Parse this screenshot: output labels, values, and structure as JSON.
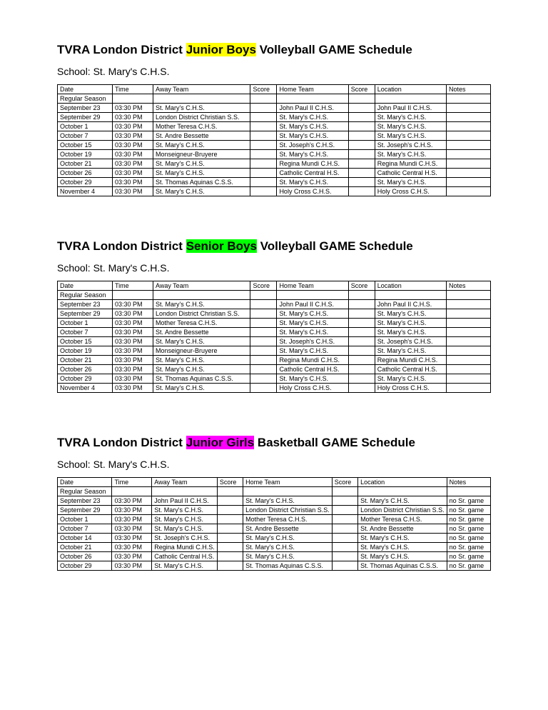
{
  "sections": [
    {
      "title_pre": "TVRA London District ",
      "title_hl": "Junior Boys",
      "title_post": " Volleyball GAME Schedule",
      "hl_class": "hl-yellow",
      "subtitle": "School: St. Mary's C.H.S.",
      "columns": [
        "Date",
        "Time",
        "Away Team",
        "Score",
        "Home Team",
        "Score",
        "Location",
        "Notes"
      ],
      "subheader": "Regular Season",
      "rows": [
        [
          "September 23",
          "03:30 PM",
          "St. Mary's C.H.S.",
          "",
          "John Paul II C.H.S.",
          "",
          "John Paul II C.H.S.",
          ""
        ],
        [
          "September 29",
          "03:30 PM",
          "London District Christian S.S.",
          "",
          "St. Mary's C.H.S.",
          "",
          "St. Mary's C.H.S.",
          ""
        ],
        [
          "October 1",
          "03:30 PM",
          "Mother Teresa C.H.S.",
          "",
          "St. Mary's C.H.S.",
          "",
          "St. Mary's C.H.S.",
          ""
        ],
        [
          "October 7",
          "03:30 PM",
          "St. Andre Bessette",
          "",
          "St. Mary's C.H.S.",
          "",
          "St. Mary's C.H.S.",
          ""
        ],
        [
          "October 15",
          "03:30 PM",
          "St. Mary's C.H.S.",
          "",
          "St. Joseph's C.H.S.",
          "",
          "St. Joseph's C.H.S.",
          ""
        ],
        [
          "October 19",
          "03:30 PM",
          "Monseigneur-Bruyere",
          "",
          "St. Mary's C.H.S.",
          "",
          "St. Mary's C.H.S.",
          ""
        ],
        [
          "October 21",
          "03:30 PM",
          "St. Mary's C.H.S.",
          "",
          "Regina Mundi C.H.S.",
          "",
          "Regina Mundi C.H.S.",
          ""
        ],
        [
          "October 26",
          "03:30 PM",
          "St. Mary's C.H.S.",
          "",
          "Catholic Central H.S.",
          "",
          "Catholic Central H.S.",
          ""
        ],
        [
          "October 29",
          "03:30 PM",
          "St. Thomas Aquinas C.S.S.",
          "",
          "St. Mary's C.H.S.",
          "",
          "St. Mary's C.H.S.",
          ""
        ],
        [
          "November 4",
          "03:30 PM",
          "St. Mary's C.H.S.",
          "",
          "Holy Cross C.H.S.",
          "",
          "Holy Cross C.H.S.",
          ""
        ]
      ]
    },
    {
      "title_pre": "TVRA London District ",
      "title_hl": "Senior Boys",
      "title_post": " Volleyball GAME Schedule",
      "hl_class": "hl-green",
      "subtitle": "School: St. Mary's C.H.S.",
      "columns": [
        "Date",
        "Time",
        "Away Team",
        "Score",
        "Home Team",
        "Score",
        "Location",
        "Notes"
      ],
      "subheader": "Regular Season",
      "rows": [
        [
          "September 23",
          "03:30 PM",
          "St. Mary's C.H.S.",
          "",
          "John Paul II C.H.S.",
          "",
          "John Paul II C.H.S.",
          ""
        ],
        [
          "September 29",
          "03:30 PM",
          "London District Christian S.S.",
          "",
          "St. Mary's C.H.S.",
          "",
          "St. Mary's C.H.S.",
          ""
        ],
        [
          "October 1",
          "03:30 PM",
          "Mother Teresa C.H.S.",
          "",
          "St. Mary's C.H.S.",
          "",
          "St. Mary's C.H.S.",
          ""
        ],
        [
          "October 7",
          "03:30 PM",
          "St. Andre Bessette",
          "",
          "St. Mary's C.H.S.",
          "",
          "St. Mary's C.H.S.",
          ""
        ],
        [
          "October 15",
          "03:30 PM",
          "St. Mary's C.H.S.",
          "",
          "St. Joseph's C.H.S.",
          "",
          "St. Joseph's C.H.S.",
          ""
        ],
        [
          "October 19",
          "03:30 PM",
          "Monseigneur-Bruyere",
          "",
          "St. Mary's C.H.S.",
          "",
          "St. Mary's C.H.S.",
          ""
        ],
        [
          "October 21",
          "03:30 PM",
          "St. Mary's C.H.S.",
          "",
          "Regina Mundi C.H.S.",
          "",
          "Regina Mundi C.H.S.",
          ""
        ],
        [
          "October 26",
          "03:30 PM",
          "St. Mary's C.H.S.",
          "",
          "Catholic Central H.S.",
          "",
          "Catholic Central H.S.",
          ""
        ],
        [
          "October 29",
          "03:30 PM",
          "St. Thomas Aquinas C.S.S.",
          "",
          "St. Mary's C.H.S.",
          "",
          "St. Mary's C.H.S.",
          ""
        ],
        [
          "November 4",
          "03:30 PM",
          "St. Mary's C.H.S.",
          "",
          "Holy Cross C.H.S.",
          "",
          "Holy Cross C.H.S.",
          ""
        ]
      ]
    },
    {
      "title_pre": "TVRA London District ",
      "title_hl": "Junior Girls",
      "title_post": " Basketball GAME Schedule",
      "hl_class": "hl-pink",
      "subtitle": "School: St. Mary's C.H.S.",
      "columns": [
        "Date",
        "Time",
        "Away Team",
        "Score",
        "Home Team",
        "Score",
        "Location",
        "Notes"
      ],
      "subheader": "Regular Season",
      "rows": [
        [
          "September 23",
          "03:30 PM",
          "John Paul II C.H.S.",
          "",
          "St. Mary's C.H.S.",
          "",
          "St. Mary's C.H.S.",
          "no Sr. game"
        ],
        [
          "September 29",
          "03:30 PM",
          "St. Mary's C.H.S.",
          "",
          "London District Christian S.S.",
          "",
          "London District Christian S.S.",
          "no Sr. game"
        ],
        [
          "October 1",
          "03:30 PM",
          "St. Mary's C.H.S.",
          "",
          "Mother Teresa C.H.S.",
          "",
          "Mother Teresa C.H.S.",
          "no Sr. game"
        ],
        [
          "October 7",
          "03:30 PM",
          "St. Mary's C.H.S.",
          "",
          "St. Andre Bessette",
          "",
          "St. Andre Bessette",
          "no Sr. game"
        ],
        [
          "October 14",
          "03:30 PM",
          "St. Joseph's C.H.S.",
          "",
          "St. Mary's C.H.S.",
          "",
          "St. Mary's C.H.S.",
          "no Sr. game"
        ],
        [
          "October 21",
          "03:30 PM",
          "Regina Mundi C.H.S.",
          "",
          "St. Mary's C.H.S.",
          "",
          "St. Mary's C.H.S.",
          "no Sr. game"
        ],
        [
          "October 26",
          "03:30 PM",
          "Catholic Central H.S.",
          "",
          "St. Mary's C.H.S.",
          "",
          "St. Mary's C.H.S.",
          "no Sr. game"
        ],
        [
          "October 29",
          "03:30 PM",
          "St. Mary's C.H.S.",
          "",
          "St. Thomas Aquinas C.S.S.",
          "",
          "St. Thomas Aquinas C.S.S.",
          "no Sr. game"
        ]
      ]
    }
  ]
}
